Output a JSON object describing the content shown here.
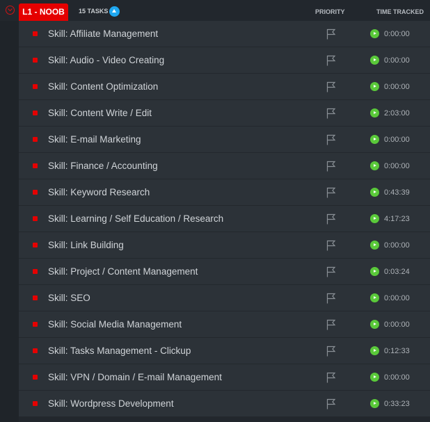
{
  "group": {
    "label": "L1 - NOOB",
    "task_count": "15 TASKS",
    "color": "#e50000"
  },
  "columns": {
    "priority": "PRIORITY",
    "time": "TIME TRACKED"
  },
  "tasks": [
    {
      "name": "Skill: Affiliate Management",
      "time": "0:00:00"
    },
    {
      "name": "Skill: Audio - Video Creating",
      "time": "0:00:00"
    },
    {
      "name": "Skill: Content Optimization",
      "time": "0:00:00"
    },
    {
      "name": "Skill: Content Write / Edit",
      "time": "2:03:00"
    },
    {
      "name": "Skill: E-mail Marketing",
      "time": "0:00:00"
    },
    {
      "name": "Skill: Finance / Accounting",
      "time": "0:00:00"
    },
    {
      "name": "Skill: Keyword Research",
      "time": "0:43:39"
    },
    {
      "name": "Skill: Learning / Self Education / Research",
      "time": "4:17:23"
    },
    {
      "name": "Skill: Link Building",
      "time": "0:00:00"
    },
    {
      "name": "Skill: Project / Content Management",
      "time": "0:03:24"
    },
    {
      "name": "Skill: SEO",
      "time": "0:00:00"
    },
    {
      "name": "Skill: Social Media Management",
      "time": "0:00:00"
    },
    {
      "name": "Skill: Tasks Management - Clickup",
      "time": "0:12:33"
    },
    {
      "name": "Skill: VPN / Domain / E-mail Management",
      "time": "0:00:00"
    },
    {
      "name": "Skill: Wordpress Development",
      "time": "0:33:23"
    }
  ]
}
